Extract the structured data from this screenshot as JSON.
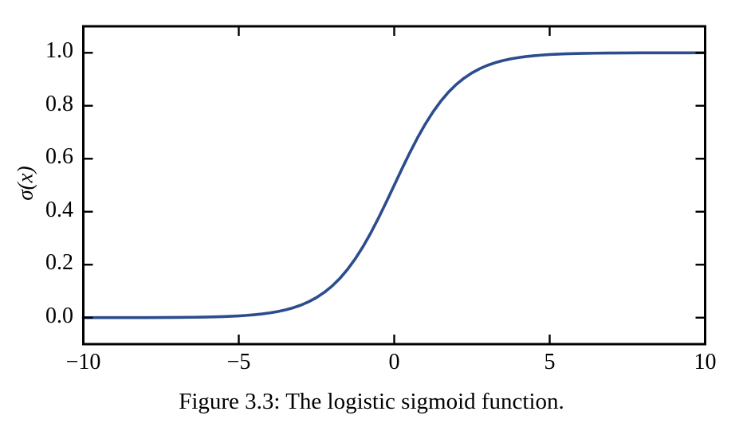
{
  "caption": "Figure 3.3: The logistic sigmoid function.",
  "chart_data": {
    "type": "line",
    "title": "",
    "xlabel": "",
    "ylabel": "σ(x)",
    "xlim": [
      -10,
      10
    ],
    "ylim": [
      -0.1,
      1.1
    ],
    "grid": false,
    "axis_color": "#000000",
    "tick_direction": "in",
    "xticks": [
      -10,
      -5,
      0,
      5,
      10
    ],
    "xtick_labels": [
      "−10",
      "−5",
      "0",
      "5",
      "10"
    ],
    "yticks": [
      0.0,
      0.2,
      0.4,
      0.6,
      0.8,
      1.0
    ],
    "ytick_labels": [
      "0.0",
      "0.2",
      "0.4",
      "0.6",
      "0.8",
      "1.0"
    ],
    "series": [
      {
        "name": "logistic-sigmoid",
        "color": "#2b4c8e",
        "x": [
          -10,
          -9.5,
          -9,
          -8.5,
          -8,
          -7.5,
          -7,
          -6.5,
          -6,
          -5.5,
          -5,
          -4.75,
          -4.5,
          -4.25,
          -4,
          -3.75,
          -3.5,
          -3.25,
          -3,
          -2.75,
          -2.5,
          -2.25,
          -2,
          -1.75,
          -1.5,
          -1.25,
          -1,
          -0.75,
          -0.5,
          -0.25,
          0,
          0.25,
          0.5,
          0.75,
          1,
          1.25,
          1.5,
          1.75,
          2,
          2.25,
          2.5,
          2.75,
          3,
          3.25,
          3.5,
          3.75,
          4,
          4.25,
          4.5,
          4.75,
          5,
          5.5,
          6,
          6.5,
          7,
          7.5,
          8,
          8.5,
          9,
          9.5,
          10
        ],
        "y": [
          0.0,
          0.0001,
          0.0001,
          0.0002,
          0.0003,
          0.0006,
          0.0009,
          0.0015,
          0.0025,
          0.0041,
          0.0067,
          0.0086,
          0.011,
          0.0141,
          0.018,
          0.023,
          0.0293,
          0.0373,
          0.0474,
          0.0601,
          0.0759,
          0.0953,
          0.1192,
          0.148,
          0.1824,
          0.2227,
          0.2689,
          0.3208,
          0.3775,
          0.4378,
          0.5,
          0.5622,
          0.6225,
          0.6792,
          0.7311,
          0.7773,
          0.8176,
          0.852,
          0.8808,
          0.9047,
          0.9241,
          0.9399,
          0.9526,
          0.9627,
          0.9707,
          0.977,
          0.982,
          0.9859,
          0.989,
          0.9914,
          0.9933,
          0.9959,
          0.9975,
          0.9985,
          0.9991,
          0.9994,
          0.9997,
          0.9998,
          0.9999,
          0.9999,
          1.0
        ]
      }
    ]
  }
}
